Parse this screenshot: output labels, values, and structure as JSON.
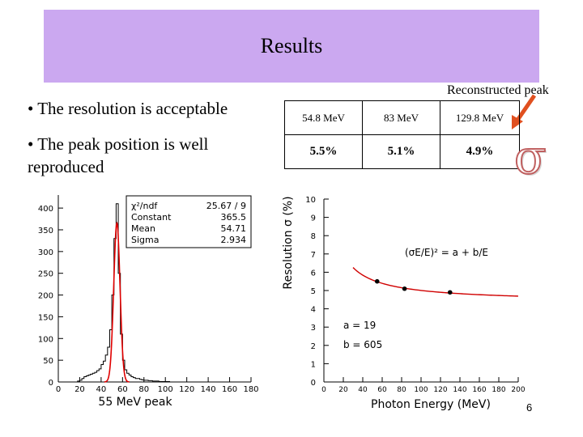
{
  "slide": {
    "title": "Results",
    "annotation": "Reconstructed peak",
    "bullets": [
      "• The resolution is acceptable",
      "• The peak position is well reproduced"
    ],
    "page_number": "6",
    "accent_color": "#cba8f0"
  },
  "table": {
    "energies": [
      "54.8 MeV",
      "83 MeV",
      "129.8 MeV"
    ],
    "resolutions": [
      "5.5%",
      "5.1%",
      "4.9%"
    ],
    "symbol": "σ"
  },
  "chart_data": [
    {
      "type": "bar",
      "xlabel": "55 MeV peak",
      "xlim": [
        0,
        180
      ],
      "ylim": [
        0,
        430
      ],
      "x_ticks": [
        0,
        20,
        40,
        60,
        80,
        100,
        120,
        140,
        160,
        180
      ],
      "y_ticks": [
        0,
        50,
        100,
        150,
        200,
        250,
        300,
        350,
        400
      ],
      "x": [
        0,
        2,
        4,
        6,
        8,
        10,
        12,
        14,
        16,
        18,
        20,
        22,
        24,
        26,
        28,
        30,
        32,
        34,
        36,
        38,
        40,
        42,
        44,
        46,
        48,
        50,
        52,
        54,
        56,
        58,
        60,
        62,
        64,
        66,
        68,
        70,
        72,
        74,
        76,
        78,
        80,
        82,
        84,
        86,
        88,
        90,
        92,
        94,
        96,
        98,
        100,
        102,
        104,
        106,
        108,
        110,
        112,
        114,
        116,
        118,
        120
      ],
      "values": [
        0,
        0,
        0,
        0,
        0,
        0,
        0,
        0,
        0,
        2,
        4,
        8,
        12,
        14,
        16,
        18,
        20,
        22,
        26,
        30,
        40,
        48,
        62,
        80,
        120,
        200,
        330,
        410,
        250,
        110,
        50,
        28,
        20,
        16,
        12,
        10,
        8,
        8,
        6,
        5,
        4,
        4,
        3,
        3,
        2,
        2,
        2,
        1,
        1,
        1,
        1,
        1,
        0,
        0,
        0,
        0,
        0,
        0,
        0,
        0,
        0
      ],
      "stats": {
        "labels": [
          "χ²/ndf",
          "Constant",
          "Mean",
          "Sigma"
        ],
        "values": [
          "25.67 / 9",
          "365.5",
          "54.71",
          "2.934"
        ]
      }
    },
    {
      "type": "scatter",
      "xlabel": "Photon Energy (MeV)",
      "ylabel": "Resolution σ (%)",
      "xlim": [
        0,
        200
      ],
      "ylim": [
        0,
        10
      ],
      "x_ticks": [
        0,
        20,
        40,
        60,
        80,
        100,
        120,
        140,
        160,
        180,
        200
      ],
      "y_ticks": [
        0,
        1,
        2,
        3,
        4,
        5,
        6,
        7,
        8,
        9,
        10
      ],
      "points": [
        {
          "x": 54.8,
          "y": 5.5
        },
        {
          "x": 83,
          "y": 5.1
        },
        {
          "x": 129.8,
          "y": 4.9
        }
      ],
      "fit": {
        "a": 19,
        "b": 605
      },
      "formula": "(σE/E)² = a + b/E",
      "fit_labels": [
        "a = 19",
        "b = 605"
      ]
    }
  ]
}
